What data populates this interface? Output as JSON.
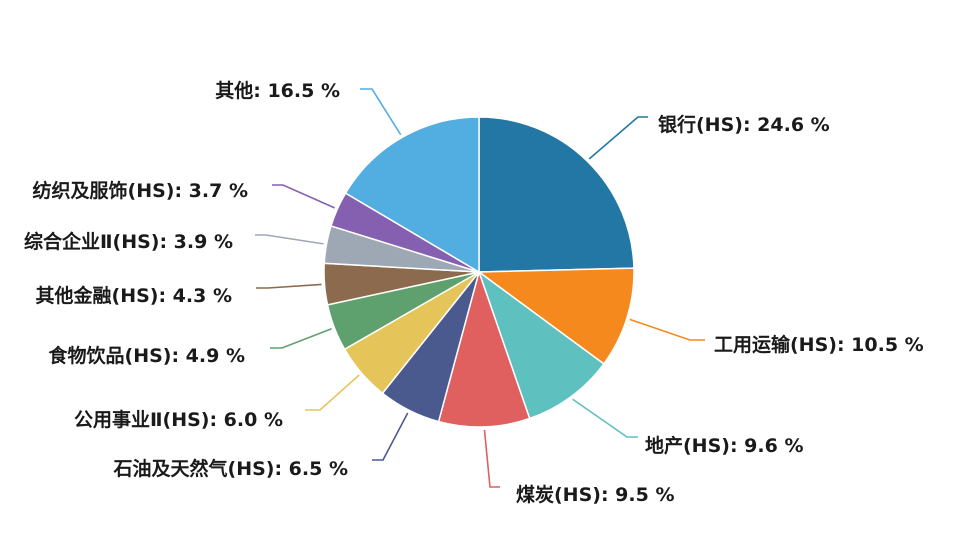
{
  "chart_data": {
    "type": "pie",
    "start_angle_deg": 90,
    "direction": "clockwise",
    "value_suffix": " %",
    "slices": [
      {
        "label": "银行(HS)",
        "value": 24.6,
        "color": "#2277a4"
      },
      {
        "label": "工用运输(HS)",
        "value": 10.5,
        "color": "#f5891e"
      },
      {
        "label": "地产(HS)",
        "value": 9.6,
        "color": "#5fc0c0"
      },
      {
        "label": "煤炭(HS)",
        "value": 9.5,
        "color": "#e05f5f"
      },
      {
        "label": "石油及天然气(HS)",
        "value": 6.5,
        "color": "#4a5a8e"
      },
      {
        "label": "公用事业Ⅱ(HS)",
        "value": 6.0,
        "color": "#e5c55a"
      },
      {
        "label": "食物饮品(HS)",
        "value": 4.9,
        "color": "#5fa06f"
      },
      {
        "label": "其他金融(HS)",
        "value": 4.3,
        "color": "#8b6a4e"
      },
      {
        "label": "综合企业Ⅱ(HS)",
        "value": 3.9,
        "color": "#9ea8b5"
      },
      {
        "label": "纺织及服饰(HS)",
        "value": 3.7,
        "color": "#855fb0"
      },
      {
        "label": "其他",
        "value": 16.5,
        "color": "#52ade0"
      }
    ]
  }
}
